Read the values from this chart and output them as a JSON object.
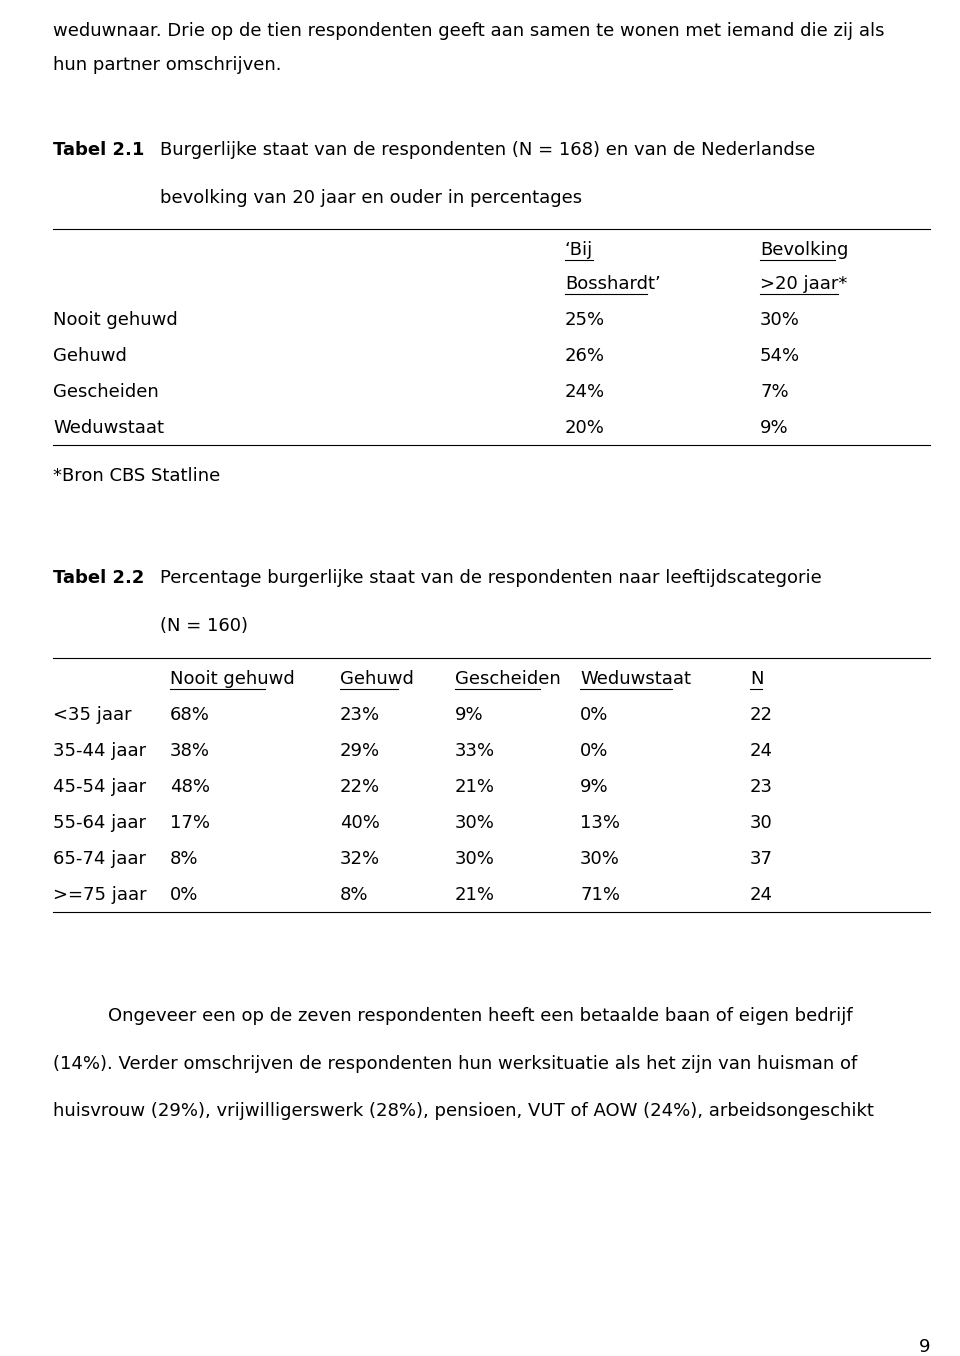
{
  "bg_color": "#ffffff",
  "text_color": "#000000",
  "page_number": "9",
  "intro_text_line1": "weduwnaar. Drie op de tien respondenten geeft aan samen te wonen met iemand die zij als",
  "intro_text_line2": "hun partner omschrijven.",
  "tabel1_label": "Tabel 2.1",
  "tabel1_title_line1": "Burgerlijke staat van de respondenten (N = 168) en van de Nederlandse",
  "tabel1_title_line2": "bevolking van 20 jaar en ouder in percentages",
  "tabel1_col1_header1": "‘Bij",
  "tabel1_col1_header2": "Bosshardt’",
  "tabel1_col2_header1": "Bevolking",
  "tabel1_col2_header2": ">20 jaar*",
  "tabel1_rows": [
    {
      "label": "Nooit gehuwd",
      "col1": "25%",
      "col2": "30%"
    },
    {
      "label": "Gehuwd",
      "col1": "26%",
      "col2": "54%"
    },
    {
      "label": "Gescheiden",
      "col1": "24%",
      "col2": "7%"
    },
    {
      "label": "Weduwstaat",
      "col1": "20%",
      "col2": "9%"
    }
  ],
  "tabel1_footnote": "*Bron CBS Statline",
  "tabel2_label": "Tabel 2.2",
  "tabel2_title_line1": "Percentage burgerlijke staat van de respondenten naar leeftijdscategorie",
  "tabel2_title_line2": "(N = 160)",
  "tabel2_col_headers": [
    "Nooit gehuwd",
    "Gehuwd",
    "Gescheiden",
    "Weduwstaat",
    "N"
  ],
  "tabel2_rows": [
    {
      "label": "<35 jaar",
      "vals": [
        "68%",
        "23%",
        "9%",
        "0%",
        "22"
      ]
    },
    {
      "label": "35-44 jaar",
      "vals": [
        "38%",
        "29%",
        "33%",
        "0%",
        "24"
      ]
    },
    {
      "label": "45-54 jaar",
      "vals": [
        "48%",
        "22%",
        "21%",
        "9%",
        "23"
      ]
    },
    {
      "label": "55-64 jaar",
      "vals": [
        "17%",
        "40%",
        "30%",
        "13%",
        "30"
      ]
    },
    {
      "label": "65-74 jaar",
      "vals": [
        "8%",
        "32%",
        "30%",
        "30%",
        "37"
      ]
    },
    {
      "label": ">=75 jaar",
      "vals": [
        "0%",
        "8%",
        "21%",
        "71%",
        "24"
      ]
    }
  ],
  "footer_text_line1": "Ongeveer een op de zeven respondenten heeft een betaalde baan of eigen bedrijf",
  "footer_text_line2": "(14%). Verder omschrijven de respondenten hun werksituatie als het zijn van huisman of",
  "footer_text_line3": "huisvrouw (29%), vrijwilligerswerk (28%), pensioen, VUT of AOW (24%), arbeidsongeschikt",
  "font_size_body": 13.0,
  "font_family": "DejaVu Sans"
}
